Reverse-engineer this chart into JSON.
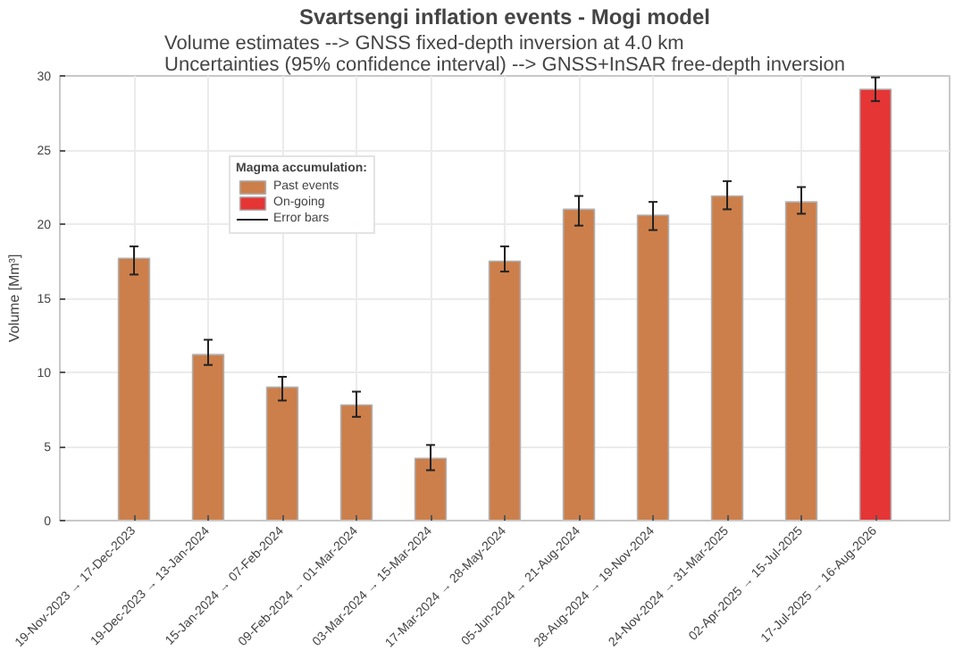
{
  "chart_data": {
    "type": "bar",
    "title": "Svartsengi inflation events - Mogi model",
    "subtitle": "Volume estimates --> GNSS fixed-depth inversion at 4.0 km\nUncertainties (95% confidence interval) --> GNSS+InSAR free-depth inversion",
    "ylabel": "Volume [Mm³]",
    "categories": [
      "19-Nov-2023 → 17-Dec-2023",
      "19-Dec-2023 → 13-Jan-2024",
      "15-Jan-2024 → 07-Feb-2024",
      "09-Feb-2024 → 01-Mar-2024",
      "03-Mar-2024 → 15-Mar-2024",
      "17-Mar-2024 → 28-May-2024",
      "05-Jun-2024 → 21-Aug-2024",
      "28-Aug-2024 → 19-Nov-2024",
      "24-Nov-2024 → 31-Mar-2025",
      "02-Apr-2025 → 15-Jul-2025",
      "17-Jul-2025 → 16-Aug-2026"
    ],
    "series": [
      {
        "name": "Past events",
        "color": "#cc7f4a",
        "values": [
          17.7,
          11.2,
          9.0,
          7.8,
          4.2,
          17.5,
          21.0,
          20.6,
          21.9,
          21.5,
          null
        ],
        "errors": [
          [
            16.6,
            18.5
          ],
          [
            10.5,
            12.2
          ],
          [
            8.1,
            9.7
          ],
          [
            7.0,
            8.7
          ],
          [
            3.4,
            5.1
          ],
          [
            16.8,
            18.5
          ],
          [
            19.9,
            21.9
          ],
          [
            19.6,
            21.5
          ],
          [
            21.0,
            22.9
          ],
          [
            20.7,
            22.5
          ],
          null
        ]
      },
      {
        "name": "On-going",
        "color": "#e53535",
        "values": [
          null,
          null,
          null,
          null,
          null,
          null,
          null,
          null,
          null,
          null,
          29.1
        ],
        "errors": [
          null,
          null,
          null,
          null,
          null,
          null,
          null,
          null,
          null,
          null,
          [
            28.3,
            29.9
          ]
        ]
      }
    ],
    "ylim": [
      0,
      30
    ],
    "yticks": [
      0,
      5,
      10,
      15,
      20,
      25,
      30
    ],
    "grid": true,
    "legend": "top left",
    "legend_title": "Magma accumulation:",
    "annotations": [
      "Error bars"
    ]
  }
}
